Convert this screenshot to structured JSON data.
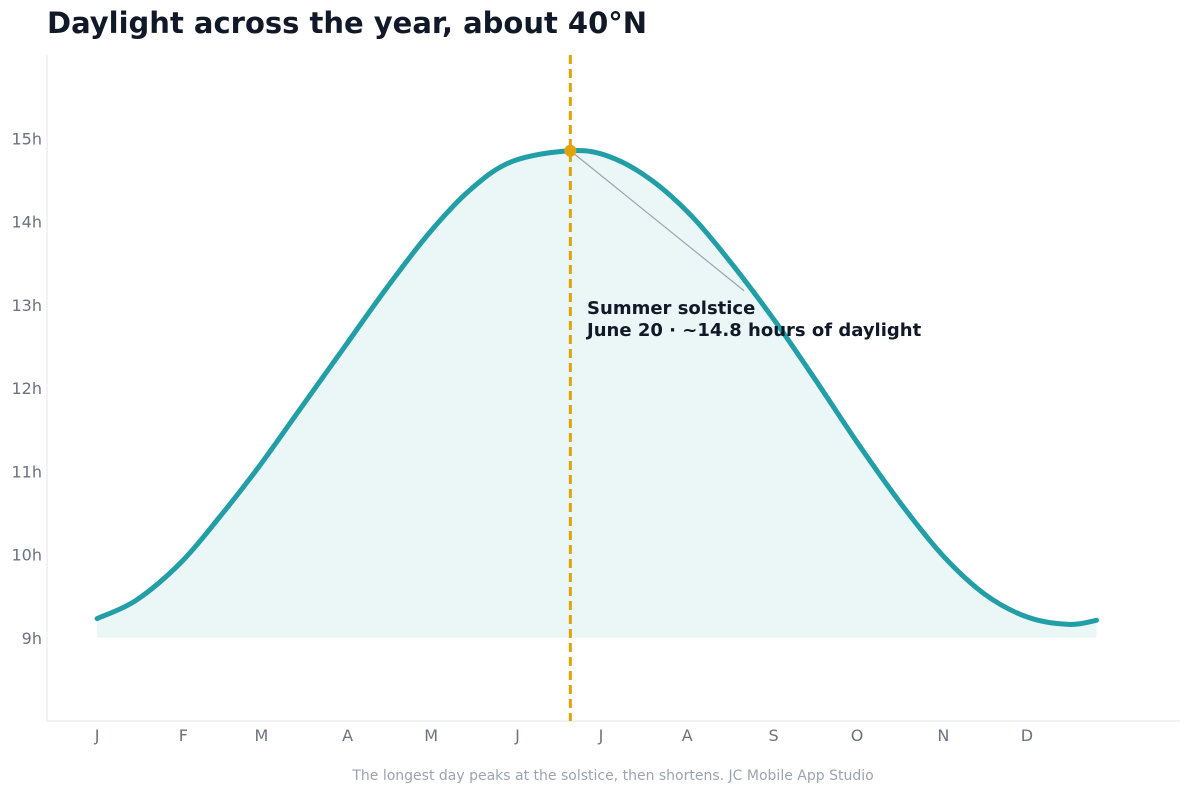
{
  "title": "Daylight across the year, about 40°N",
  "caption": "The longest day peaks at the solstice, then shortens. JC Mobile App Studio",
  "colors": {
    "line": "#229ea7",
    "fill": "#229ea7",
    "marker": "#e0a308",
    "axis": "#e5e7eb",
    "tick_text": "#6b7280",
    "annotation_text": "#111827",
    "leader": "#9ca3af"
  },
  "chart_data": {
    "type": "area",
    "title": "Daylight across the year, about 40°N",
    "xlabel": "",
    "ylabel": "",
    "x_ticks": [
      {
        "label": "J",
        "day": 1
      },
      {
        "label": "F",
        "day": 32
      },
      {
        "label": "M",
        "day": 60
      },
      {
        "label": "A",
        "day": 91
      },
      {
        "label": "M",
        "day": 121
      },
      {
        "label": "J",
        "day": 152
      },
      {
        "label": "J",
        "day": 182
      },
      {
        "label": "A",
        "day": 213
      },
      {
        "label": "S",
        "day": 244
      },
      {
        "label": "O",
        "day": 274
      },
      {
        "label": "N",
        "day": 305
      },
      {
        "label": "D",
        "day": 335
      }
    ],
    "y_ticks": [
      {
        "label": "9h",
        "value": 9
      },
      {
        "label": "10h",
        "value": 10
      },
      {
        "label": "11h",
        "value": 11
      },
      {
        "label": "12h",
        "value": 12
      },
      {
        "label": "13h",
        "value": 13
      },
      {
        "label": "14h",
        "value": 14
      },
      {
        "label": "15h",
        "value": 15
      }
    ],
    "xlim": [
      -17,
      390
    ],
    "ylim": [
      8,
      16
    ],
    "fill_baseline": 9,
    "grid": false,
    "series": [
      {
        "points": [
          [
            1,
            9.23
          ],
          [
            15,
            9.45
          ],
          [
            31,
            9.9
          ],
          [
            45,
            10.45
          ],
          [
            59,
            11.05
          ],
          [
            74,
            11.75
          ],
          [
            90,
            12.5
          ],
          [
            105,
            13.2
          ],
          [
            120,
            13.85
          ],
          [
            135,
            14.38
          ],
          [
            150,
            14.72
          ],
          [
            171,
            14.85
          ],
          [
            185,
            14.78
          ],
          [
            200,
            14.5
          ],
          [
            215,
            14.05
          ],
          [
            230,
            13.45
          ],
          [
            245,
            12.78
          ],
          [
            260,
            12.05
          ],
          [
            275,
            11.3
          ],
          [
            290,
            10.6
          ],
          [
            305,
            9.98
          ],
          [
            320,
            9.52
          ],
          [
            335,
            9.25
          ],
          [
            350,
            9.16
          ],
          [
            360,
            9.21
          ]
        ]
      }
    ],
    "annotation": {
      "day": 171,
      "value": 14.85,
      "vline": true,
      "label_line1": "Summer solstice",
      "label_line2": "June 20  ·  ~14.8 hours of daylight",
      "text_at": {
        "day": 177,
        "value": 13
      }
    }
  }
}
